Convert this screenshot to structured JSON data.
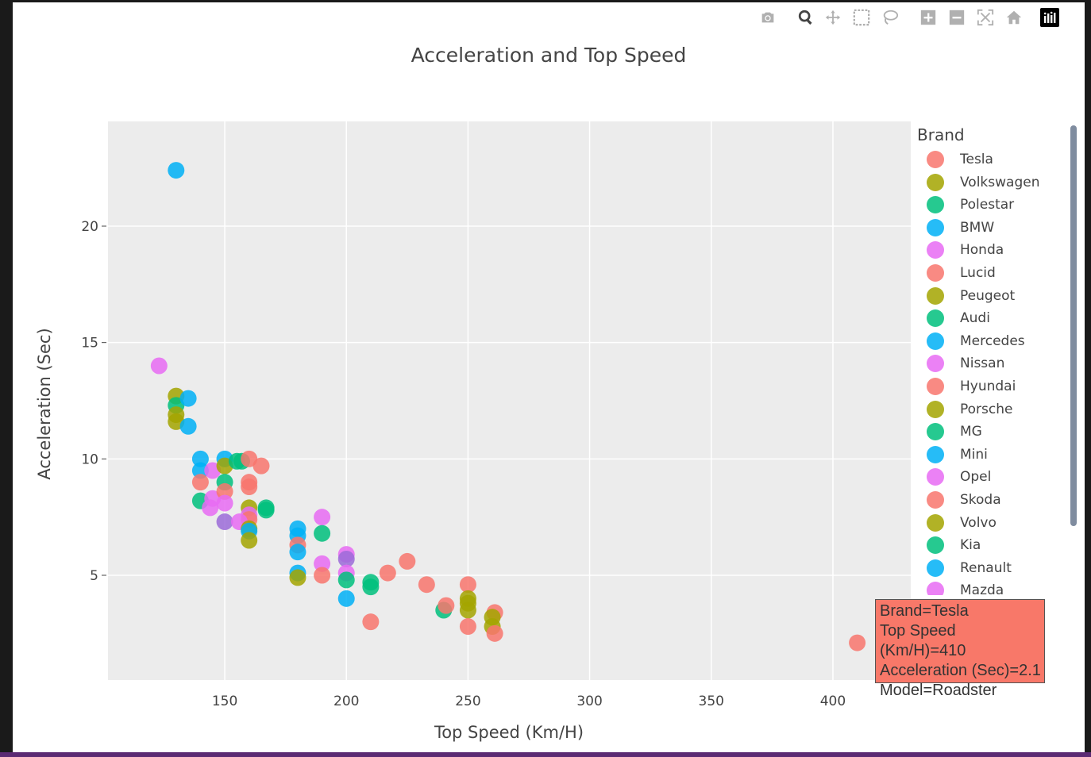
{
  "toolbar": {
    "buttons": [
      {
        "name": "camera-icon",
        "label": "Download plot as a png"
      },
      {
        "name": "zoom-icon",
        "label": "Zoom"
      },
      {
        "name": "pan-icon",
        "label": "Pan"
      },
      {
        "name": "box-select-icon",
        "label": "Box Select"
      },
      {
        "name": "lasso-select-icon",
        "label": "Lasso Select"
      },
      {
        "name": "zoom-in-icon",
        "label": "Zoom in"
      },
      {
        "name": "zoom-out-icon",
        "label": "Zoom out"
      },
      {
        "name": "autoscale-icon",
        "label": "Autoscale"
      },
      {
        "name": "reset-axes-icon",
        "label": "Reset axes"
      },
      {
        "name": "plotly-logo-icon",
        "label": "Produced with Plotly"
      }
    ]
  },
  "legend": {
    "title": "Brand",
    "entries": [
      {
        "name": "Tesla",
        "color": "#f8766d"
      },
      {
        "name": "Volkswagen",
        "color": "#a3a500"
      },
      {
        "name": "Polestar",
        "color": "#00bf7d"
      },
      {
        "name": "BMW",
        "color": "#00b0f6"
      },
      {
        "name": "Honda",
        "color": "#e76bf3"
      },
      {
        "name": "Lucid",
        "color": "#f8766d"
      },
      {
        "name": "Peugeot",
        "color": "#a3a500"
      },
      {
        "name": "Audi",
        "color": "#00bf7d"
      },
      {
        "name": "Mercedes",
        "color": "#00b0f6"
      },
      {
        "name": "Nissan",
        "color": "#e76bf3"
      },
      {
        "name": "Hyundai",
        "color": "#f8766d"
      },
      {
        "name": "Porsche",
        "color": "#a3a500"
      },
      {
        "name": "MG",
        "color": "#00bf7d"
      },
      {
        "name": "Mini",
        "color": "#00b0f6"
      },
      {
        "name": "Opel",
        "color": "#e76bf3"
      },
      {
        "name": "Skoda",
        "color": "#f8766d"
      },
      {
        "name": "Volvo",
        "color": "#a3a500"
      },
      {
        "name": "Kia",
        "color": "#00bf7d"
      },
      {
        "name": "Renault",
        "color": "#00b0f6"
      },
      {
        "name": "Mazda",
        "color": "#e76bf3"
      }
    ]
  },
  "tooltip": {
    "line1": "Brand=Tesla",
    "line2": "Top Speed (Km/H)=410",
    "line3": "Acceleration (Sec)=2.1",
    "line4": "Model=Roadster"
  },
  "chart_data": {
    "type": "scatter",
    "title": "Acceleration and Top Speed",
    "xlabel": "Top Speed (Km/H)",
    "ylabel": "Acceleration (Sec)",
    "xlim": [
      102,
      432
    ],
    "ylim": [
      0.5,
      24.5
    ],
    "xticks": [
      150,
      200,
      250,
      300,
      350,
      400
    ],
    "yticks": [
      5,
      10,
      15,
      20
    ],
    "grid": true,
    "legend_position": "right",
    "background": "#ececec",
    "points": [
      {
        "x": 130,
        "y": 22.4,
        "c": "#00b0f6"
      },
      {
        "x": 123,
        "y": 14.0,
        "c": "#e76bf3"
      },
      {
        "x": 130,
        "y": 12.7,
        "c": "#a3a500"
      },
      {
        "x": 130,
        "y": 12.3,
        "c": "#00bf7d"
      },
      {
        "x": 130,
        "y": 11.9,
        "c": "#a3a500"
      },
      {
        "x": 130,
        "y": 11.6,
        "c": "#a3a500"
      },
      {
        "x": 135,
        "y": 12.6,
        "c": "#00b0f6"
      },
      {
        "x": 135,
        "y": 11.4,
        "c": "#00b0f6"
      },
      {
        "x": 140,
        "y": 10.0,
        "c": "#00b0f6"
      },
      {
        "x": 140,
        "y": 9.5,
        "c": "#00b0f6"
      },
      {
        "x": 140,
        "y": 9.0,
        "c": "#f8766d"
      },
      {
        "x": 140,
        "y": 8.2,
        "c": "#00bf7d"
      },
      {
        "x": 145,
        "y": 9.5,
        "c": "#e76bf3"
      },
      {
        "x": 145,
        "y": 8.3,
        "c": "#e76bf3"
      },
      {
        "x": 144,
        "y": 7.9,
        "c": "#e76bf3"
      },
      {
        "x": 150,
        "y": 10.0,
        "c": "#00b0f6"
      },
      {
        "x": 150,
        "y": 9.7,
        "c": "#a3a500"
      },
      {
        "x": 150,
        "y": 9.0,
        "c": "#00bf7d"
      },
      {
        "x": 150,
        "y": 8.6,
        "c": "#f8766d"
      },
      {
        "x": 150,
        "y": 8.1,
        "c": "#e76bf3"
      },
      {
        "x": 150,
        "y": 7.3,
        "c": "#9b6bd8"
      },
      {
        "x": 155,
        "y": 9.9,
        "c": "#00bf7d"
      },
      {
        "x": 157,
        "y": 9.9,
        "c": "#00bf7d"
      },
      {
        "x": 160,
        "y": 10.0,
        "c": "#f8766d"
      },
      {
        "x": 165,
        "y": 9.7,
        "c": "#f8766d"
      },
      {
        "x": 160,
        "y": 9.0,
        "c": "#f8766d"
      },
      {
        "x": 160,
        "y": 8.8,
        "c": "#f8766d"
      },
      {
        "x": 160,
        "y": 7.9,
        "c": "#a3a500"
      },
      {
        "x": 160,
        "y": 7.6,
        "c": "#e76bf3"
      },
      {
        "x": 160,
        "y": 7.4,
        "c": "#f8766d"
      },
      {
        "x": 156,
        "y": 7.3,
        "c": "#e76bf3"
      },
      {
        "x": 160,
        "y": 7.0,
        "c": "#a3a500"
      },
      {
        "x": 160,
        "y": 6.9,
        "c": "#00b0f6"
      },
      {
        "x": 160,
        "y": 6.5,
        "c": "#a3a500"
      },
      {
        "x": 167,
        "y": 7.9,
        "c": "#00bf7d"
      },
      {
        "x": 167,
        "y": 7.8,
        "c": "#00bf7d"
      },
      {
        "x": 180,
        "y": 7.0,
        "c": "#00b0f6"
      },
      {
        "x": 180,
        "y": 6.7,
        "c": "#00b0f6"
      },
      {
        "x": 180,
        "y": 6.3,
        "c": "#f8766d"
      },
      {
        "x": 180,
        "y": 6.0,
        "c": "#00b0f6"
      },
      {
        "x": 180,
        "y": 5.1,
        "c": "#00b0f6"
      },
      {
        "x": 180,
        "y": 4.9,
        "c": "#a3a500"
      },
      {
        "x": 190,
        "y": 7.5,
        "c": "#e76bf3"
      },
      {
        "x": 190,
        "y": 6.8,
        "c": "#00bf7d"
      },
      {
        "x": 190,
        "y": 5.5,
        "c": "#e76bf3"
      },
      {
        "x": 190,
        "y": 5.0,
        "c": "#f8766d"
      },
      {
        "x": 200,
        "y": 5.9,
        "c": "#e76bf3"
      },
      {
        "x": 200,
        "y": 5.7,
        "c": "#9b6bd8"
      },
      {
        "x": 200,
        "y": 5.1,
        "c": "#e76bf3"
      },
      {
        "x": 200,
        "y": 4.8,
        "c": "#00bf7d"
      },
      {
        "x": 200,
        "y": 4.0,
        "c": "#00b0f6"
      },
      {
        "x": 210,
        "y": 4.7,
        "c": "#00bf7d"
      },
      {
        "x": 210,
        "y": 4.5,
        "c": "#00bf7d"
      },
      {
        "x": 210,
        "y": 3.0,
        "c": "#f8766d"
      },
      {
        "x": 217,
        "y": 5.1,
        "c": "#f8766d"
      },
      {
        "x": 225,
        "y": 5.6,
        "c": "#f8766d"
      },
      {
        "x": 233,
        "y": 4.6,
        "c": "#f8766d"
      },
      {
        "x": 240,
        "y": 3.5,
        "c": "#00bf7d"
      },
      {
        "x": 241,
        "y": 3.7,
        "c": "#f8766d"
      },
      {
        "x": 250,
        "y": 4.6,
        "c": "#f8766d"
      },
      {
        "x": 250,
        "y": 4.0,
        "c": "#a3a500"
      },
      {
        "x": 250,
        "y": 3.8,
        "c": "#a3a500"
      },
      {
        "x": 250,
        "y": 3.5,
        "c": "#a3a500"
      },
      {
        "x": 250,
        "y": 2.8,
        "c": "#f8766d"
      },
      {
        "x": 261,
        "y": 3.4,
        "c": "#f8766d"
      },
      {
        "x": 260,
        "y": 3.2,
        "c": "#a3a500"
      },
      {
        "x": 260,
        "y": 2.8,
        "c": "#a3a500"
      },
      {
        "x": 261,
        "y": 2.5,
        "c": "#f8766d"
      },
      {
        "x": 410,
        "y": 2.1,
        "c": "#f8766d"
      }
    ]
  }
}
